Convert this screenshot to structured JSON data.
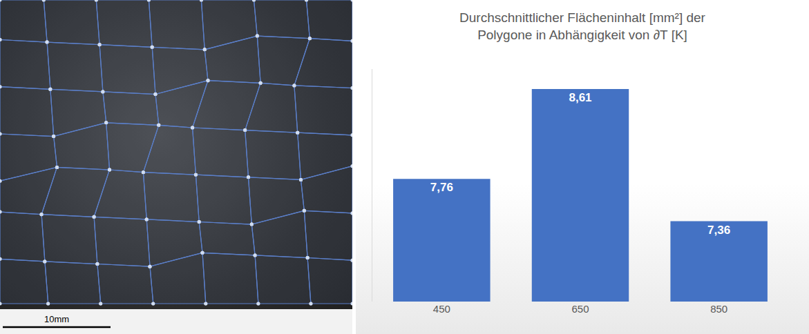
{
  "image": {
    "scale_bar_label": "10mm"
  },
  "chart_data": {
    "type": "bar",
    "title": "Durchschnittlicher Flächeninhalt [mm²] der Polygone in Abhängigkeit von ∂T [K]",
    "categories": [
      "450",
      "650",
      "850"
    ],
    "values": [
      7.76,
      8.61,
      7.36
    ],
    "value_labels": [
      "7,76",
      "8,61",
      "7,36"
    ],
    "color": "#4472c4",
    "ylim": [
      6.6,
      8.8
    ],
    "grid": false,
    "data_labels": true,
    "tick_labels": "x"
  }
}
